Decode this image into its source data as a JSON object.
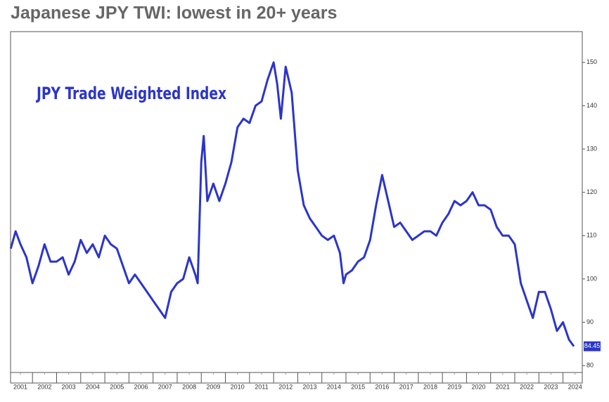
{
  "chart_data": {
    "type": "line",
    "title": "Japanese JPY TWI: lowest in 20+ years",
    "x": [
      2001.1,
      2001.3,
      2001.5,
      2001.75,
      2002.0,
      2002.25,
      2002.5,
      2002.75,
      2003.0,
      2003.25,
      2003.5,
      2003.75,
      2004.0,
      2004.25,
      2004.5,
      2004.75,
      2005.0,
      2005.25,
      2005.5,
      2005.75,
      2006.0,
      2006.25,
      2006.5,
      2006.75,
      2007.0,
      2007.25,
      2007.5,
      2007.75,
      2008.0,
      2008.25,
      2008.5,
      2008.75,
      2008.85,
      2009.0,
      2009.1,
      2009.25,
      2009.5,
      2009.75,
      2010.0,
      2010.25,
      2010.5,
      2010.75,
      2011.0,
      2011.25,
      2011.5,
      2011.75,
      2012.0,
      2012.15,
      2012.3,
      2012.5,
      2012.75,
      2013.0,
      2013.25,
      2013.5,
      2013.75,
      2014.0,
      2014.25,
      2014.5,
      2014.75,
      2014.9,
      2015.0,
      2015.25,
      2015.5,
      2015.75,
      2016.0,
      2016.25,
      2016.5,
      2016.75,
      2017.0,
      2017.25,
      2017.5,
      2017.75,
      2018.0,
      2018.25,
      2018.5,
      2018.75,
      2019.0,
      2019.25,
      2019.5,
      2019.75,
      2020.0,
      2020.25,
      2020.5,
      2020.75,
      2021.0,
      2021.25,
      2021.5,
      2021.75,
      2022.0,
      2022.25,
      2022.5,
      2022.75,
      2023.0,
      2023.25,
      2023.5,
      2023.75,
      2024.0,
      2024.25,
      2024.45
    ],
    "series": [
      {
        "name": "JPY Trade Weighted Index",
        "color": "#2b35c9",
        "values": [
          107,
          111,
          108,
          105,
          99,
          103,
          108,
          104,
          104,
          105,
          101,
          104,
          109,
          106,
          108,
          105,
          110,
          108,
          107,
          103,
          99,
          101,
          99,
          97,
          95,
          93,
          91,
          97,
          99,
          100,
          105,
          101,
          99,
          127,
          133,
          118,
          122,
          118,
          122,
          127,
          135,
          137,
          136,
          140,
          141,
          146,
          150,
          145,
          137,
          149,
          143,
          125,
          117,
          114,
          112,
          110,
          109,
          110,
          106,
          99,
          101,
          102,
          104,
          105,
          109,
          117,
          124,
          118,
          112,
          113,
          111,
          109,
          110,
          111,
          111,
          110,
          113,
          115,
          118,
          117,
          118,
          120,
          117,
          117,
          116,
          112,
          110,
          110,
          108,
          99,
          95,
          91,
          97,
          97,
          93,
          88,
          90,
          86,
          84.45
        ]
      }
    ],
    "end_label": 84.45,
    "xlim": [
      2001.09,
      2024.8
    ],
    "xticks": [
      {
        "value": 2001.5,
        "label": "2001"
      },
      {
        "value": 2002.5,
        "label": "2002"
      },
      {
        "value": 2003.5,
        "label": "2003"
      },
      {
        "value": 2004.5,
        "label": "2004"
      },
      {
        "value": 2005.5,
        "label": "2005"
      },
      {
        "value": 2006.5,
        "label": "2006"
      },
      {
        "value": 2007.5,
        "label": "2007"
      },
      {
        "value": 2008.5,
        "label": "2008"
      },
      {
        "value": 2009.5,
        "label": "2009"
      },
      {
        "value": 2010.5,
        "label": "2010"
      },
      {
        "value": 2011.5,
        "label": "2011"
      },
      {
        "value": 2012.5,
        "label": "2012"
      },
      {
        "value": 2013.5,
        "label": "2013"
      },
      {
        "value": 2014.5,
        "label": "2014"
      },
      {
        "value": 2015.5,
        "label": "2015"
      },
      {
        "value": 2016.5,
        "label": "2016"
      },
      {
        "value": 2017.5,
        "label": "2017"
      },
      {
        "value": 2018.5,
        "label": "2018"
      },
      {
        "value": 2019.5,
        "label": "2019"
      },
      {
        "value": 2020.5,
        "label": "2020"
      },
      {
        "value": 2021.5,
        "label": "2021"
      },
      {
        "value": 2022.5,
        "label": "2022"
      },
      {
        "value": 2023.5,
        "label": "2023"
      },
      {
        "value": 2024.5,
        "label": "2024"
      }
    ],
    "ylim": [
      78.4,
      157.1
    ],
    "yticks": [
      80,
      90,
      100,
      110,
      120,
      130,
      140,
      150
    ],
    "y_axis_side": "right"
  }
}
